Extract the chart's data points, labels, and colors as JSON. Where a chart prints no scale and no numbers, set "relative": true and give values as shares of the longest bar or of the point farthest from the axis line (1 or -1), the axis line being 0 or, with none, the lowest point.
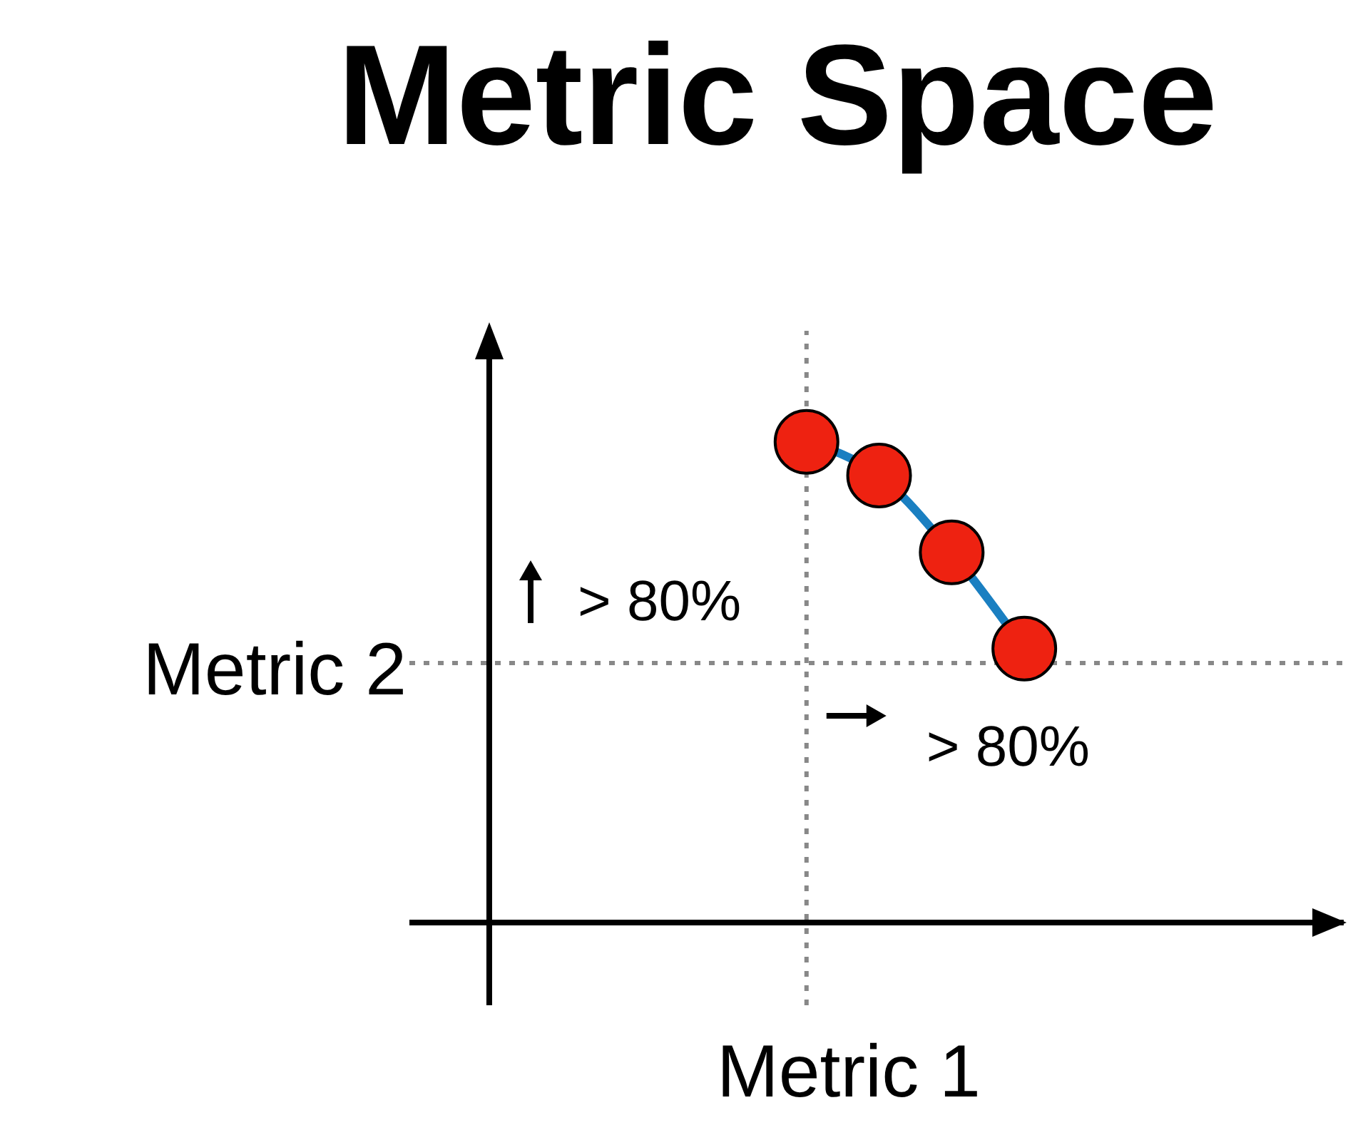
{
  "chart_data": {
    "type": "line",
    "title": "Metric Space",
    "xlabel": "Metric 1",
    "ylabel": "Metric 2",
    "relative": true,
    "marker": "circle",
    "grid": false,
    "categories": [
      null,
      null,
      null,
      null
    ],
    "series": [
      {
        "color": "#1a7fc1",
        "values": [
          1,
          0.93,
          0.77,
          0.57
        ]
      }
    ],
    "ref_lines": [
      {
        "axis": "y",
        "value": 0.54,
        "color": "#888888",
        "line_style": "dotted"
      }
    ],
    "annotations": [
      "> 80%",
      "> 80%"
    ]
  }
}
